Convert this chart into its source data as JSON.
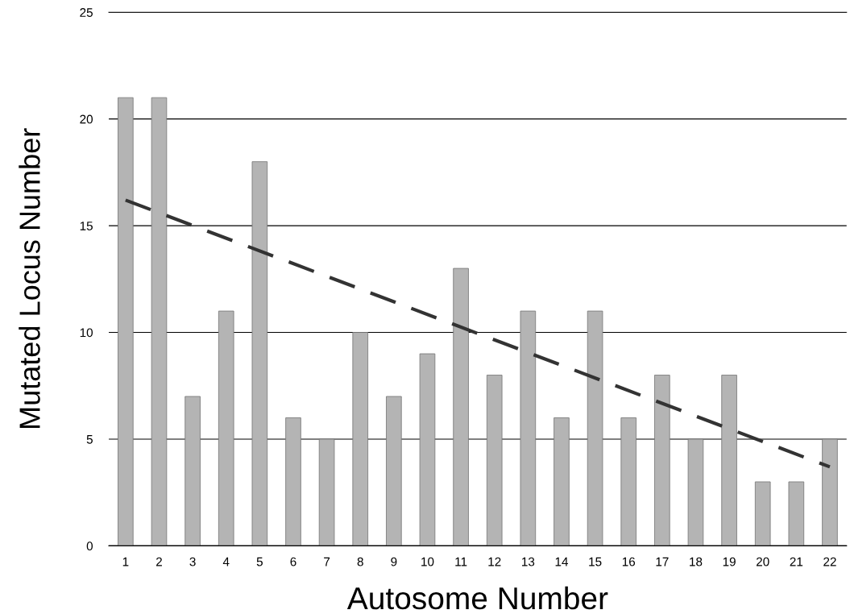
{
  "chart_data": {
    "type": "bar",
    "xlabel": "Autosome Number",
    "ylabel": "Mutated Locus Number",
    "x": [
      1,
      2,
      3,
      4,
      5,
      6,
      7,
      8,
      9,
      10,
      11,
      12,
      13,
      14,
      15,
      16,
      17,
      18,
      19,
      20,
      21,
      22
    ],
    "xlim": [
      0.5,
      22.5
    ],
    "xticks": [
      1,
      2,
      3,
      4,
      5,
      6,
      7,
      8,
      9,
      10,
      11,
      12,
      13,
      14,
      15,
      16,
      17,
      18,
      19,
      20,
      21,
      22
    ],
    "ylim": [
      0,
      25
    ],
    "yticks": [
      0,
      5,
      10,
      15,
      20,
      25
    ],
    "grid": "y",
    "series": [
      {
        "color": "#b4b4b4",
        "values": [
          21,
          21,
          7,
          11,
          18,
          6,
          5,
          10,
          7,
          9,
          13,
          8,
          11,
          6,
          11,
          6,
          8,
          5,
          8,
          3,
          3,
          5
        ]
      },
      {
        "type": "line",
        "color": "#333333",
        "line_style": "dashed",
        "x": [
          1,
          22
        ],
        "values": [
          16.2,
          3.7
        ]
      }
    ]
  }
}
